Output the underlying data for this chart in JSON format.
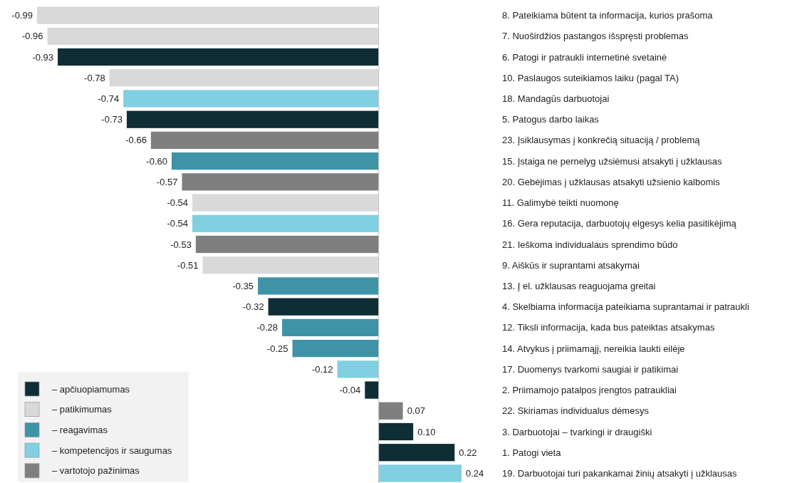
{
  "chart_data": {
    "type": "bar",
    "orientation": "horizontal",
    "legend": "bottom left",
    "categories": [
      "8. Pateikiama būtent ta informacija, kurios prašoma",
      "7. Nuoširdžios pastangos išspręsti problemas",
      "6. Patogi ir patraukli internetinė svetainė",
      "10. Paslaugos suteikiamos laiku (pagal TA)",
      "18. Mandagūs darbuotojai",
      "5. Patogus darbo laikas",
      "23. Įsiklausymas į konkrečią situaciją / problemą",
      "15. Įstaiga ne pernelyg užsiėmusi atsakyti į užklausas",
      "20. Gebėjimas į užklausas atsakyti užsienio kalbomis",
      "11. Galimybė teikti nuomonę",
      "16. Gera reputacija, darbuotojų elgesys kelia pasitikėjimą",
      "21. Ieškoma individualaus sprendimo būdo",
      "9. Aiškūs ir suprantami atsakymai",
      "13. Į el. užklausas reaguojama greitai",
      "4. Skelbiama informacija pateikiama suprantamai ir patraukli",
      "12. Tiksli informacija, kada bus pateiktas atsakymas",
      "14. Atvykus į priimamąjį, nereikia laukti eilėje",
      "17. Duomenys tvarkomi saugiai ir patikimai",
      "2. Priimamojo patalpos įrengtos patraukliai",
      "22. Skiriamas individualus dėmesys",
      "3. Darbuotojai – tvarkingi ir draugiški",
      "1. Patogi vieta",
      "19. Darbuotojai turi pakankamai žinių atsakyti į užklausas"
    ],
    "series": [
      {
        "name": "– apčiuopiamumas",
        "color": "#0e2d35",
        "values": [
          null,
          null,
          -0.93,
          null,
          null,
          -0.73,
          null,
          null,
          null,
          null,
          null,
          null,
          null,
          null,
          -0.32,
          null,
          null,
          null,
          -0.04,
          null,
          0.1,
          0.22,
          null
        ],
        "value_labels": [
          null,
          null,
          "-0.93",
          null,
          null,
          "-0.73",
          null,
          null,
          null,
          null,
          null,
          null,
          null,
          null,
          "-0.32",
          null,
          null,
          null,
          "-0.04",
          null,
          "0.10",
          "0.22",
          null
        ]
      },
      {
        "name": "– patikimumas",
        "color": "#d9d9d9",
        "values": [
          -0.99,
          -0.96,
          null,
          -0.78,
          null,
          null,
          null,
          null,
          null,
          -0.54,
          null,
          null,
          -0.51,
          null,
          null,
          null,
          null,
          null,
          null,
          null,
          null,
          null,
          null
        ],
        "value_labels": [
          "-0.99",
          "-0.96",
          null,
          "-0.78",
          null,
          null,
          null,
          null,
          null,
          "-0.54",
          null,
          null,
          "-0.51",
          null,
          null,
          null,
          null,
          null,
          null,
          null,
          null,
          null,
          null
        ]
      },
      {
        "name": "– reagavimas",
        "color": "#3f93a7",
        "values": [
          null,
          null,
          null,
          null,
          null,
          null,
          null,
          -0.6,
          null,
          null,
          null,
          null,
          null,
          -0.35,
          null,
          -0.28,
          -0.25,
          null,
          null,
          null,
          null,
          null,
          null
        ],
        "value_labels": [
          null,
          null,
          null,
          null,
          null,
          null,
          null,
          "-0.60",
          null,
          null,
          null,
          null,
          null,
          "-0.35",
          null,
          "-0.28",
          "-0.25",
          null,
          null,
          null,
          null,
          null,
          null
        ]
      },
      {
        "name": "– kompetencijos ir saugumas",
        "color": "#80d0e2",
        "values": [
          null,
          null,
          null,
          null,
          -0.74,
          null,
          null,
          null,
          null,
          null,
          -0.54,
          null,
          null,
          null,
          null,
          null,
          null,
          -0.12,
          null,
          null,
          null,
          null,
          0.24
        ],
        "value_labels": [
          null,
          null,
          null,
          null,
          "-0.74",
          null,
          null,
          null,
          null,
          null,
          "-0.54",
          null,
          null,
          null,
          null,
          null,
          null,
          "-0.12",
          null,
          null,
          null,
          null,
          "0.24"
        ]
      },
      {
        "name": "– vartotojo pažinimas",
        "color": "#7f7f7f",
        "values": [
          null,
          null,
          null,
          null,
          null,
          null,
          -0.66,
          null,
          -0.57,
          null,
          null,
          -0.53,
          null,
          null,
          null,
          null,
          null,
          null,
          null,
          0.07,
          null,
          null,
          null
        ],
        "value_labels": [
          null,
          null,
          null,
          null,
          null,
          null,
          "-0.66",
          null,
          "-0.57",
          null,
          null,
          "-0.53",
          null,
          null,
          null,
          null,
          null,
          null,
          null,
          "0.07",
          null,
          null,
          null
        ]
      }
    ]
  }
}
